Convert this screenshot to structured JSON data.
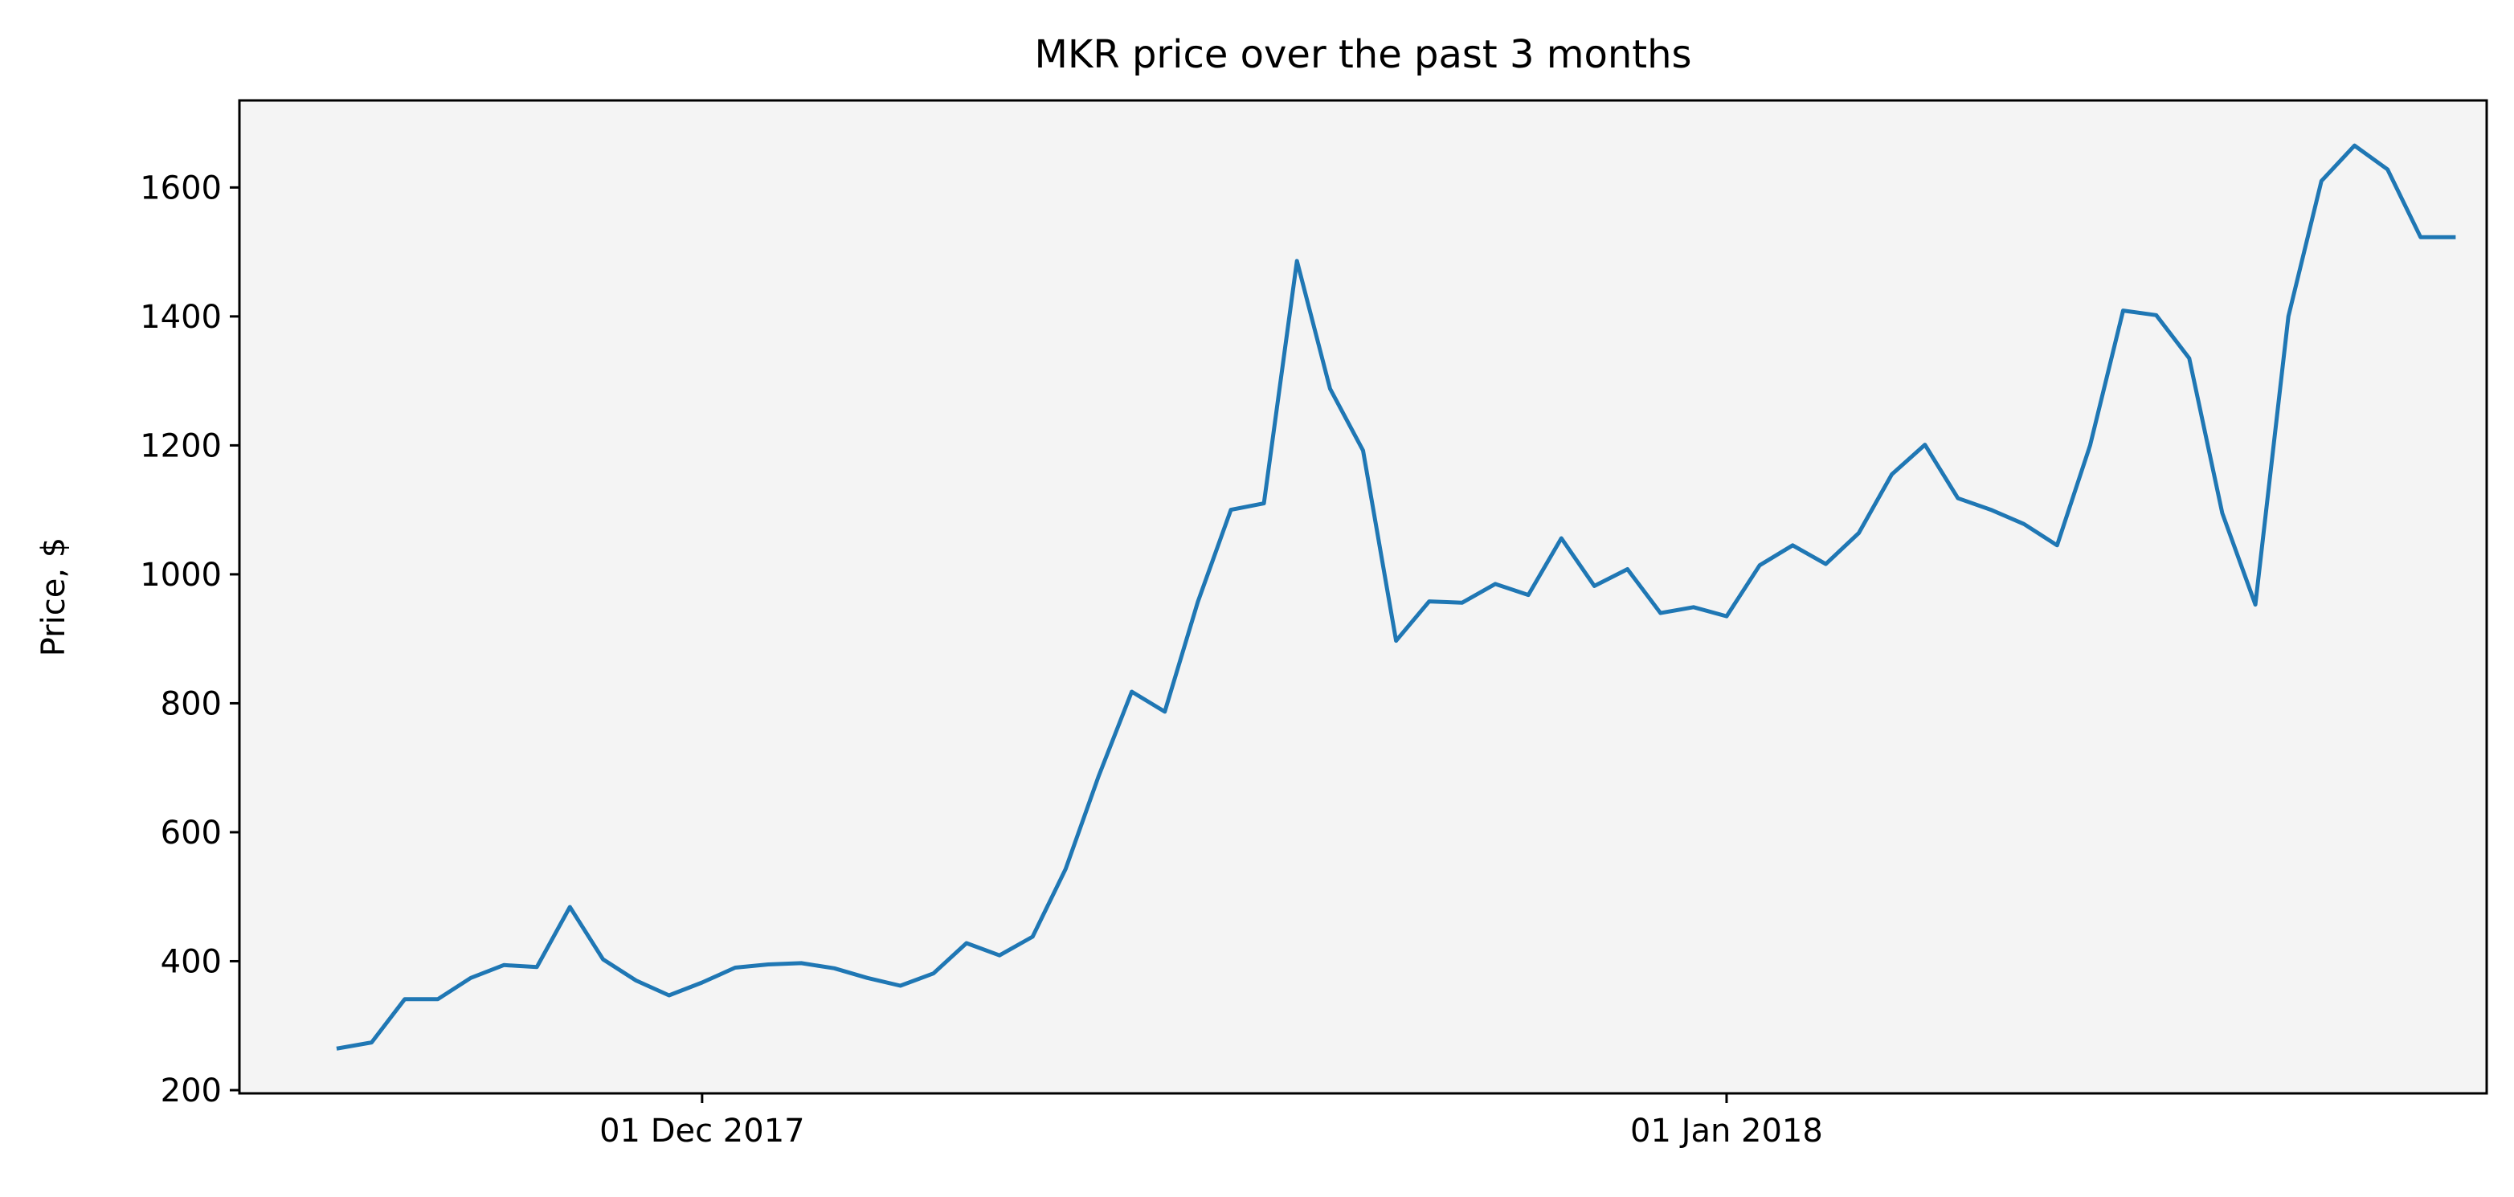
{
  "chart_data": {
    "type": "line",
    "title": "MKR price over the past 3 months",
    "xlabel": "",
    "ylabel": "Price, $",
    "ylim": [
      195,
      1735
    ],
    "xlim": [
      "2017-11-17",
      "2018-01-24"
    ],
    "yticks": [
      200,
      400,
      600,
      800,
      1000,
      1200,
      1400,
      1600
    ],
    "xticks": [
      {
        "date": "2017-12-01",
        "label": "01 Dec 2017"
      },
      {
        "date": "2018-01-01",
        "label": "01 Jan 2018"
      }
    ],
    "grid": false,
    "background_color": "#f4f4f4",
    "line_color": "#1f77b4",
    "series": [
      {
        "x": [
          "2017-11-20",
          "2017-11-21",
          "2017-11-22",
          "2017-11-23",
          "2017-11-24",
          "2017-11-25",
          "2017-11-26",
          "2017-11-27",
          "2017-11-28",
          "2017-11-29",
          "2017-11-30",
          "2017-12-01",
          "2017-12-02",
          "2017-12-03",
          "2017-12-04",
          "2017-12-05",
          "2017-12-06",
          "2017-12-07",
          "2017-12-08",
          "2017-12-09",
          "2017-12-10",
          "2017-12-11",
          "2017-12-12",
          "2017-12-13",
          "2017-12-14",
          "2017-12-15",
          "2017-12-16",
          "2017-12-17",
          "2017-12-18",
          "2017-12-19",
          "2017-12-20",
          "2017-12-21",
          "2017-12-22",
          "2017-12-23",
          "2017-12-24",
          "2017-12-25",
          "2017-12-26",
          "2017-12-27",
          "2017-12-28",
          "2017-12-29",
          "2017-12-30",
          "2017-12-31",
          "2018-01-01",
          "2018-01-02",
          "2018-01-03",
          "2018-01-04",
          "2018-01-05",
          "2018-01-06",
          "2018-01-07",
          "2018-01-08",
          "2018-01-09",
          "2018-01-10",
          "2018-01-11",
          "2018-01-12",
          "2018-01-13",
          "2018-01-14",
          "2018-01-15",
          "2018-01-16",
          "2018-01-17",
          "2018-01-18",
          "2018-01-19",
          "2018-01-20",
          "2018-01-21",
          "2018-01-22",
          "2018-01-23"
        ],
        "values": [
          265,
          274,
          341,
          341,
          374,
          394,
          391,
          484,
          403,
          370,
          347,
          367,
          390,
          395,
          397,
          389,
          374,
          362,
          381,
          428,
          409,
          438,
          543,
          687,
          818,
          787,
          957,
          1100,
          1110,
          1486,
          1288,
          1192,
          897,
          958,
          956,
          985,
          968,
          1056,
          982,
          1008,
          940,
          949,
          935,
          1014,
          1045,
          1016,
          1064,
          1155,
          1201,
          1118,
          1100,
          1078,
          1045,
          1200,
          1409,
          1402,
          1335,
          1095,
          953,
          1400,
          1610,
          1665,
          1628,
          1523,
          1523
        ]
      }
    ]
  }
}
